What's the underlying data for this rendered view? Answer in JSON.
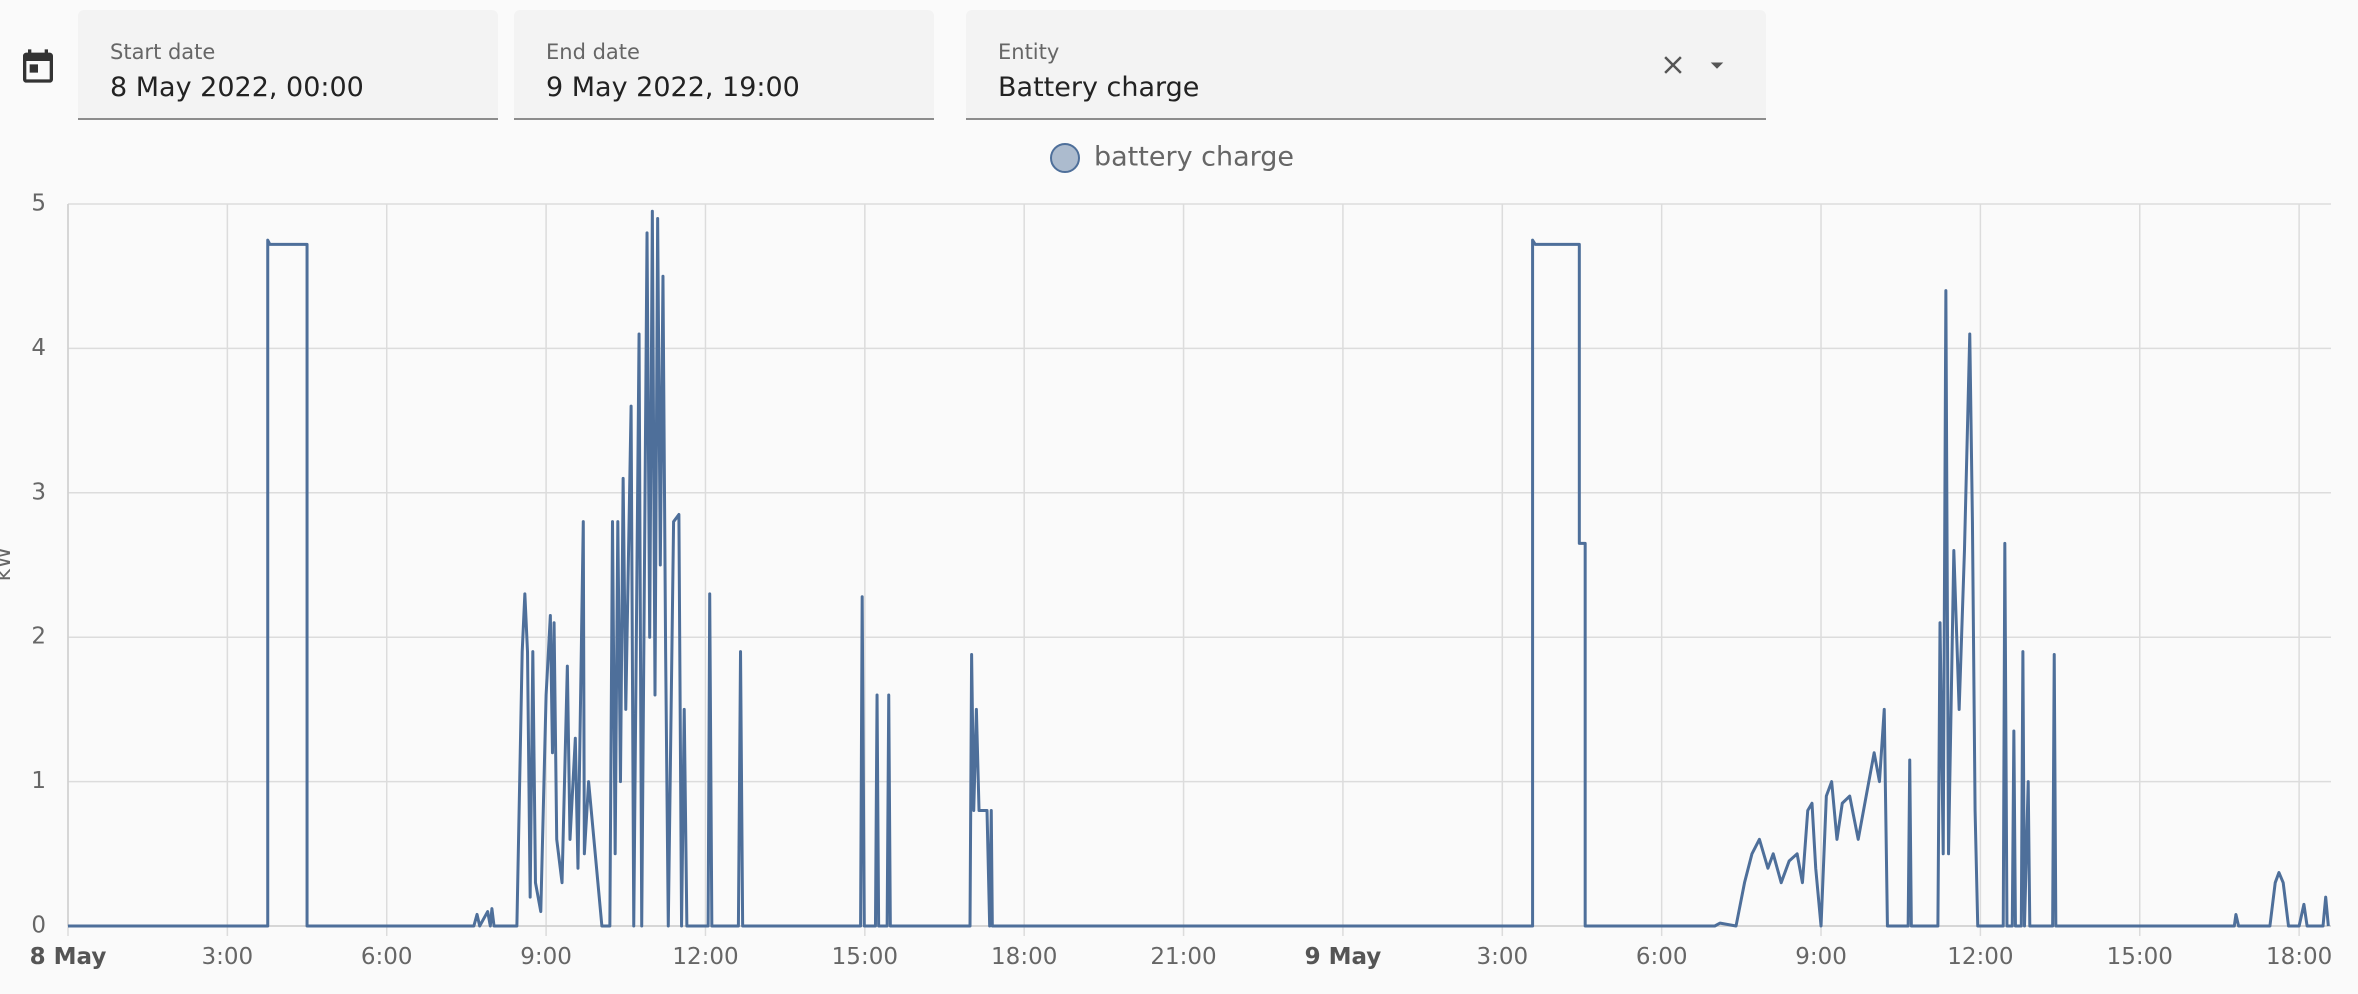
{
  "filters": [
    {
      "label": "Start date",
      "value": "8 May 2022, 00:00"
    },
    {
      "label": "End date",
      "value": "9 May 2022, 19:00"
    },
    {
      "label": "Entity",
      "value": "Battery charge"
    }
  ],
  "chart_data": {
    "type": "line",
    "ylabel": "kW",
    "xlim": [
      0,
      42.6
    ],
    "xticks": [
      {
        "value": 0,
        "label": "8 May"
      },
      {
        "value": 3,
        "label": "3:00"
      },
      {
        "value": 6,
        "label": "6:00"
      },
      {
        "value": 9,
        "label": "9:00"
      },
      {
        "value": 12,
        "label": "12:00"
      },
      {
        "value": 15,
        "label": "15:00"
      },
      {
        "value": 18,
        "label": "18:00"
      },
      {
        "value": 21,
        "label": "21:00"
      },
      {
        "value": 24,
        "label": "9 May"
      },
      {
        "value": 27,
        "label": "3:00"
      },
      {
        "value": 30,
        "label": "6:00"
      },
      {
        "value": 33,
        "label": "9:00"
      },
      {
        "value": 36,
        "label": "12:00"
      },
      {
        "value": 39,
        "label": "15:00"
      },
      {
        "value": 42,
        "label": "18:00"
      }
    ],
    "ylim": [
      0,
      5
    ],
    "yticks": [
      0,
      1,
      2,
      3,
      4,
      5
    ],
    "grid": true,
    "legend": "top",
    "series": [
      {
        "name": "battery charge",
        "color": "#4e6f9a",
        "x": [
          0,
          3.76,
          3.76,
          3.8,
          4.5,
          4.5,
          7.64,
          7.7,
          7.75,
          7.9,
          7.95,
          7.98,
          8.02,
          8.45,
          8.55,
          8.6,
          8.65,
          8.7,
          8.75,
          8.8,
          8.9,
          9.0,
          9.08,
          9.12,
          9.15,
          9.2,
          9.3,
          9.4,
          9.45,
          9.55,
          9.6,
          9.7,
          9.72,
          9.8,
          9.9,
          10.0,
          10.05,
          10.2,
          10.25,
          10.3,
          10.35,
          10.4,
          10.45,
          10.5,
          10.6,
          10.65,
          10.75,
          10.8,
          10.9,
          10.95,
          11.0,
          11.05,
          11.1,
          11.15,
          11.2,
          11.25,
          11.3,
          11.4,
          11.5,
          11.55,
          11.6,
          11.65,
          12.05,
          12.08,
          12.12,
          12.62,
          12.66,
          12.7,
          14.92,
          14.95,
          14.99,
          15.2,
          15.23,
          15.26,
          15.42,
          15.45,
          15.48,
          16.98,
          17.01,
          17.05,
          17.1,
          17.15,
          17.3,
          17.35,
          17.38,
          17.4,
          27.57,
          27.57,
          27.62,
          28.45,
          28.45,
          28.56,
          28.56,
          31.0,
          31.1,
          31.4,
          31.56,
          31.7,
          31.84,
          32.0,
          32.1,
          32.25,
          32.4,
          32.55,
          32.65,
          32.75,
          32.83,
          32.9,
          33.0,
          33.1,
          33.2,
          33.3,
          33.4,
          33.54,
          33.7,
          33.85,
          34.0,
          34.1,
          34.19,
          34.25,
          34.64,
          34.67,
          34.7,
          35.2,
          35.24,
          35.3,
          35.35,
          35.4,
          35.5,
          35.6,
          35.7,
          35.8,
          35.85,
          35.9,
          35.95,
          36.43,
          36.46,
          36.5,
          36.6,
          36.63,
          36.66,
          36.77,
          36.8,
          36.83,
          36.9,
          36.93,
          37.36,
          37.39,
          37.42,
          40.78,
          40.81,
          40.86,
          41.45,
          41.55,
          41.62,
          41.7,
          41.8,
          42.0,
          42.09,
          42.15,
          42.45,
          42.5,
          42.55
        ],
        "values": [
          0,
          0,
          4.75,
          4.72,
          4.72,
          0,
          0,
          0.08,
          0,
          0.1,
          0,
          0.12,
          0,
          0,
          1.9,
          2.3,
          1.9,
          0.2,
          1.9,
          0.3,
          0.1,
          1.6,
          2.15,
          1.2,
          2.1,
          0.6,
          0.3,
          1.8,
          0.6,
          1.3,
          0.4,
          2.8,
          0.5,
          1.0,
          0.6,
          0.2,
          0,
          0,
          2.8,
          0.5,
          2.8,
          1.0,
          3.1,
          1.5,
          3.6,
          0,
          4.1,
          0,
          4.8,
          2.0,
          4.95,
          1.6,
          4.9,
          2.5,
          4.5,
          1.9,
          0,
          2.8,
          2.85,
          0,
          1.5,
          0,
          0,
          2.3,
          0,
          0,
          1.9,
          0,
          0,
          2.28,
          0,
          0,
          1.6,
          0,
          0,
          1.6,
          0,
          0,
          1.88,
          0.8,
          1.5,
          0.8,
          0.8,
          0,
          0.8,
          0,
          0,
          4.75,
          4.72,
          4.72,
          2.65,
          2.65,
          0,
          0,
          0.02,
          0,
          0.3,
          0.5,
          0.6,
          0.4,
          0.5,
          0.3,
          0.45,
          0.5,
          0.3,
          0.8,
          0.85,
          0.4,
          0,
          0.9,
          1.0,
          0.6,
          0.85,
          0.9,
          0.6,
          0.9,
          1.2,
          1.0,
          1.5,
          0,
          0,
          1.15,
          0,
          0,
          2.1,
          0.5,
          4.4,
          0.5,
          2.6,
          1.5,
          2.6,
          4.1,
          2.8,
          0.8,
          0,
          0,
          2.65,
          0,
          0,
          1.35,
          0,
          0,
          1.9,
          0,
          1.0,
          0,
          0,
          1.88,
          0,
          0,
          0.08,
          0,
          0,
          0.3,
          0.37,
          0.3,
          0,
          0,
          0.15,
          0,
          0,
          0.2,
          0
        ]
      }
    ]
  }
}
